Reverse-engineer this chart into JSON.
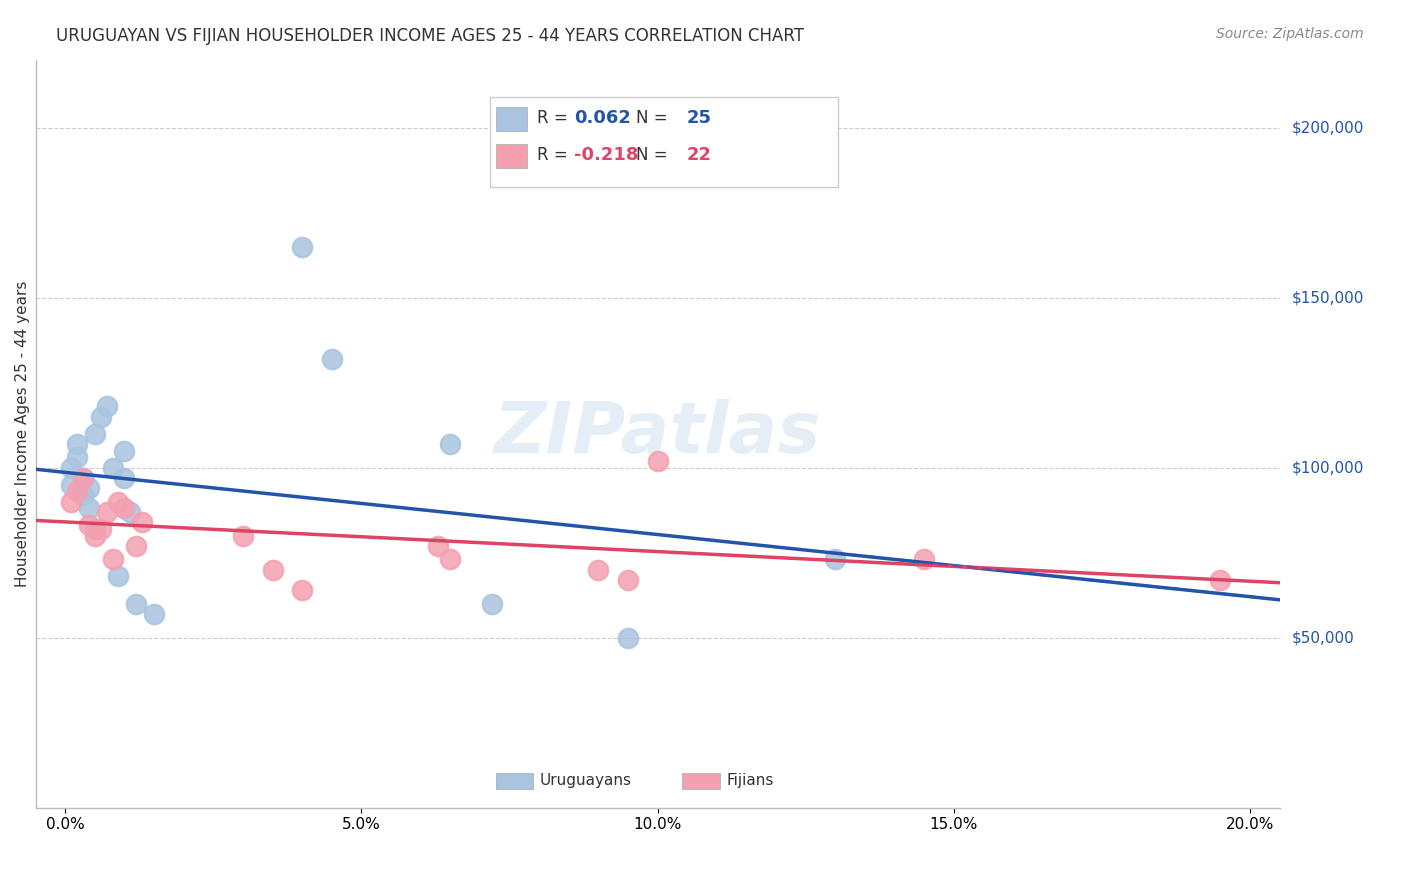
{
  "title": "URUGUAYAN VS FIJIAN HOUSEHOLDER INCOME AGES 25 - 44 YEARS CORRELATION CHART",
  "source": "Source: ZipAtlas.com",
  "ylabel": "Householder Income Ages 25 - 44 years",
  "xlabel_ticks": [
    "0.0%",
    "5.0%",
    "10.0%",
    "15.0%",
    "20.0%"
  ],
  "xlabel_vals": [
    0.0,
    0.05,
    0.1,
    0.15,
    0.2
  ],
  "ytick_vals": [
    50000,
    100000,
    150000,
    200000
  ],
  "ytick_labels": [
    "$50,000",
    "$100,000",
    "$150,000",
    "$200,000"
  ],
  "ylim": [
    0,
    220000
  ],
  "xlim": [
    -0.005,
    0.205
  ],
  "uruguayan_R_val": "0.062",
  "uruguayan_N_val": "25",
  "fijian_R_val": "-0.218",
  "fijian_N_val": "22",
  "uruguayan_color": "#a8c4e0",
  "uruguayan_line_color": "#2255aa",
  "fijian_color": "#f4a0b0",
  "fijian_line_color": "#dd4466",
  "watermark": "ZIPatlas",
  "uruguayan_x": [
    0.001,
    0.001,
    0.002,
    0.002,
    0.003,
    0.003,
    0.004,
    0.004,
    0.005,
    0.005,
    0.006,
    0.007,
    0.008,
    0.009,
    0.01,
    0.01,
    0.011,
    0.012,
    0.015,
    0.04,
    0.045,
    0.065,
    0.072,
    0.095,
    0.13
  ],
  "uruguayan_y": [
    95000,
    100000,
    103000,
    107000,
    97000,
    92000,
    94000,
    88000,
    82000,
    110000,
    115000,
    118000,
    100000,
    68000,
    105000,
    97000,
    87000,
    60000,
    57000,
    165000,
    132000,
    107000,
    60000,
    50000,
    73000
  ],
  "fijian_x": [
    0.001,
    0.002,
    0.003,
    0.004,
    0.005,
    0.006,
    0.007,
    0.008,
    0.009,
    0.01,
    0.012,
    0.013,
    0.03,
    0.035,
    0.04,
    0.063,
    0.065,
    0.09,
    0.095,
    0.1,
    0.145,
    0.195
  ],
  "fijian_y": [
    90000,
    93000,
    97000,
    83000,
    80000,
    82000,
    87000,
    73000,
    90000,
    88000,
    77000,
    84000,
    80000,
    70000,
    64000,
    77000,
    73000,
    70000,
    67000,
    102000,
    73000,
    67000
  ],
  "background_color": "#ffffff",
  "grid_color": "#cccccc"
}
